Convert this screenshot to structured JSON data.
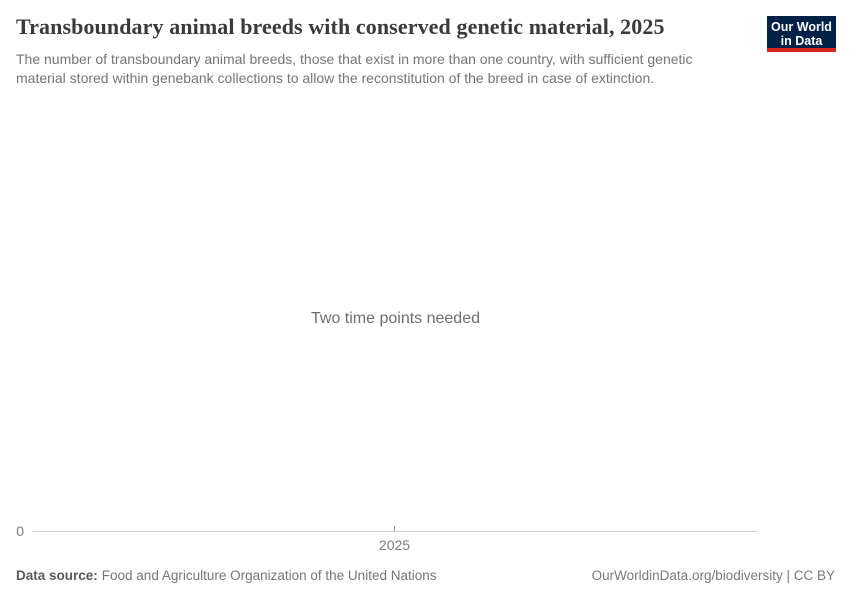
{
  "header": {
    "title": "Transboundary animal breeds with conserved genetic material, 2025",
    "subtitle_lines": [
      "The number of transboundary animal breeds, those that exist in more than one country, with sufficient genetic",
      "material stored within genebank collections to allow the reconstitution of the breed in case of extinction."
    ]
  },
  "logo": {
    "line1": "Our World",
    "line2": "in Data"
  },
  "chart": {
    "empty_message": "Two time points needed"
  },
  "axis": {
    "y_zero_label": "0",
    "x_tick_label": "2025"
  },
  "footer": {
    "datasource_label": "Data source:",
    "datasource_value": "Food and Agriculture Organization of the United Nations",
    "credit": "OurWorldinData.org/biodiversity | CC BY"
  },
  "colors": {
    "logo_background": "#002147",
    "logo_stripe": "#d8241f",
    "title_text": "#3a3a3a",
    "subtitle_text": "#757575",
    "empty_message_text": "#6e6e6e",
    "axis_line": "#cfcfcf",
    "axis_tick": "#9a9a9a",
    "axis_label_text": "#7e7e7e",
    "footer_text": "#757575",
    "footer_label_text": "#5a5a5a",
    "credit_text": "#7a7a7a"
  },
  "chart_data": {
    "type": "line",
    "title": "Transboundary animal breeds with conserved genetic material, 2025",
    "subtitle": "The number of transboundary animal breeds, those that exist in more than one country, with sufficient genetic material stored within genebank collections to allow the reconstitution of the breed in case of extinction.",
    "series": [],
    "x_ticks": [
      "2025"
    ],
    "y_ticks": [
      0
    ],
    "ylim_min": 0,
    "grid": false,
    "legend_position": "none",
    "empty_state_message": "Two time points needed",
    "data_source": "Food and Agriculture Organization of the United Nations"
  }
}
